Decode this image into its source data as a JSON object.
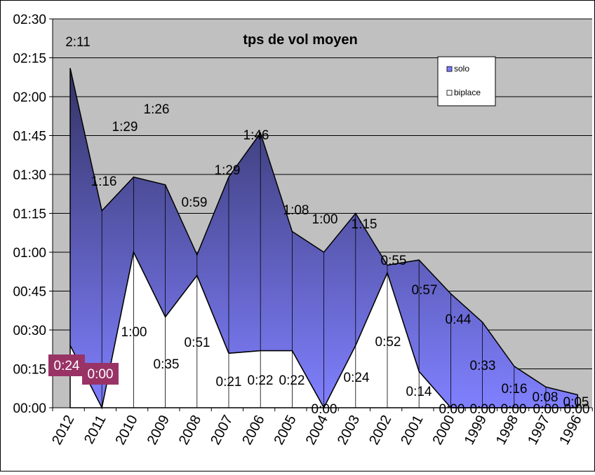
{
  "chart_data": {
    "type": "area",
    "title": "tps de vol moyen",
    "xlabel": "",
    "ylabel": "",
    "categories": [
      "2012",
      "2011",
      "2010",
      "2009",
      "2008",
      "2007",
      "2006",
      "2005",
      "2004",
      "2003",
      "2002",
      "2001",
      "2000",
      "1999",
      "1998",
      "1997",
      "1996"
    ],
    "y_ticks": [
      "00:00",
      "00:15",
      "00:30",
      "00:45",
      "01:00",
      "01:15",
      "01:30",
      "01:45",
      "02:00",
      "02:15",
      "02:30"
    ],
    "ylim_minutes": [
      0,
      150
    ],
    "grid": true,
    "legend_position": "top-right",
    "series": [
      {
        "name": "solo",
        "color": "#7B7BFF",
        "values_minutes": [
          131,
          76,
          89,
          86,
          59,
          89,
          106,
          68,
          60,
          75,
          55,
          57,
          44,
          33,
          16,
          8,
          5
        ],
        "labels": [
          "2:11",
          "1:16",
          "1:29",
          "1:26",
          "0:59",
          "1:29",
          "1:46",
          "1:08",
          "1:00",
          "1:15",
          "0:55",
          "0:57",
          "0:44",
          "0:33",
          "0:16",
          "0:08",
          "0:05"
        ]
      },
      {
        "name": "biplace",
        "color": "#FFFFFF",
        "values_minutes": [
          24,
          0,
          60,
          35,
          51,
          21,
          22,
          22,
          0,
          24,
          52,
          14,
          0,
          0,
          0,
          0,
          0
        ],
        "labels": [
          "0:24",
          "0:00",
          "1:00",
          "0:35",
          "0:51",
          "0:21",
          "0:22",
          "0:22",
          "0:00",
          "0:24",
          "0:52",
          "0:14",
          "0:00",
          "0:00",
          "0:00",
          "0:00",
          "0:00"
        ]
      }
    ],
    "colors": {
      "plot_bg": "#C0C0C0",
      "solo_top": "#333366",
      "solo_bottom": "#8080FF",
      "highlight_label_bg": "#993366"
    }
  }
}
